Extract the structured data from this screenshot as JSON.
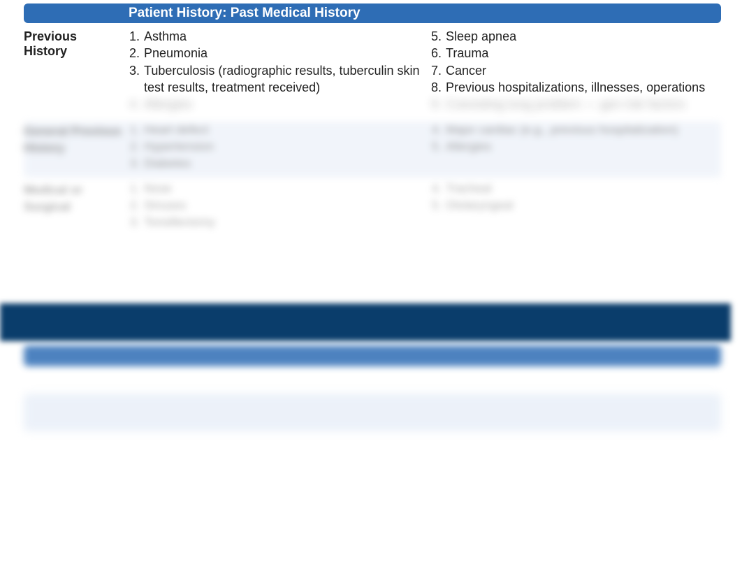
{
  "colors": {
    "header_bg": "#2e6db5",
    "header_text": "#ffffff",
    "body_text": "#222222",
    "row_alt_bg": "#e8eef8",
    "dark_band": "#0a3d6b",
    "light_band": "#e4ecf7"
  },
  "header": {
    "title": "Patient History: Past Medical History"
  },
  "section_prev": {
    "label": "Previous History",
    "left": [
      {
        "n": "1.",
        "t": "Asthma"
      },
      {
        "n": "2.",
        "t": "Pneumonia"
      },
      {
        "n": "3.",
        "t": "Tuberculosis (radiographic results, tuberculin skin test results, treatment received)"
      },
      {
        "n": "4.",
        "t": "Allergies"
      }
    ],
    "right": [
      {
        "n": "5.",
        "t": "Sleep apnea"
      },
      {
        "n": "6.",
        "t": " Trauma"
      },
      {
        "n": "7.",
        "t": "Cancer"
      },
      {
        "n": "8.",
        "t": "Previous hospitalizations, illnesses, operations"
      },
      {
        "n": "9.",
        "t": "Coexisting lung problem — gen risk factors"
      }
    ]
  },
  "section_blur1": {
    "label": "General Previous History",
    "left": [
      {
        "n": "1.",
        "t": "Heart defect"
      },
      {
        "n": "2.",
        "t": "Hypertension"
      },
      {
        "n": "3.",
        "t": "Diabetes"
      }
    ],
    "right": [
      {
        "n": "4.",
        "t": "Major cardiac (e.g., previous hospitalization)"
      },
      {
        "n": "5.",
        "t": "Allergies"
      }
    ]
  },
  "section_blur2": {
    "label": "Medical or Surgical",
    "left": [
      {
        "n": "1.",
        "t": "Nose"
      },
      {
        "n": "2.",
        "t": "Sinuses"
      },
      {
        "n": "3.",
        "t": "Tonsillectomy"
      }
    ],
    "right": [
      {
        "n": "4.",
        "t": "Tracheal"
      },
      {
        "n": "5.",
        "t": "Otolaryngeal"
      }
    ]
  }
}
